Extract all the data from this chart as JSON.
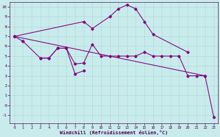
{
  "xlabel": "Windchill (Refroidissement éolien,°C)",
  "bg_color": "#c8ecec",
  "line_color": "#800080",
  "grid_color": "#b0d0d0",
  "ylim": [
    -1.8,
    10.5
  ],
  "xlim": [
    -0.5,
    23.5
  ],
  "yticks": [
    -1,
    0,
    1,
    2,
    3,
    4,
    5,
    6,
    7,
    8,
    9,
    10
  ],
  "xticks": [
    0,
    1,
    2,
    3,
    4,
    5,
    6,
    7,
    8,
    9,
    10,
    11,
    12,
    13,
    14,
    15,
    16,
    17,
    18,
    19,
    20,
    21,
    22,
    23
  ],
  "curve_short": {
    "x": [
      0,
      1
    ],
    "y": [
      7.0,
      6.5
    ]
  },
  "curve_flat": {
    "x": [
      1,
      3,
      4,
      5,
      6,
      7,
      8,
      9,
      10,
      11,
      12,
      13,
      14,
      15,
      16,
      17,
      18,
      19,
      20,
      21,
      22,
      23
    ],
    "y": [
      6.5,
      4.8,
      4.8,
      5.8,
      5.8,
      4.2,
      4.3,
      6.2,
      5.0,
      5.0,
      5.0,
      5.0,
      5.0,
      5.4,
      5.0,
      5.0,
      5.0,
      5.0,
      3.0,
      3.0,
      3.0,
      null
    ]
  },
  "curve_upper": {
    "x": [
      0,
      8,
      9,
      11,
      12,
      13,
      14,
      15,
      16,
      20
    ],
    "y": [
      7.0,
      8.5,
      7.8,
      9.0,
      9.8,
      10.2,
      9.8,
      8.5,
      7.2,
      5.4
    ]
  },
  "curve_bump": {
    "x": [
      3,
      4,
      5,
      6,
      7,
      8
    ],
    "y": [
      4.8,
      4.8,
      5.8,
      5.8,
      3.2,
      3.5
    ]
  },
  "curve_diag": {
    "x": [
      0,
      22,
      23
    ],
    "y": [
      7.0,
      3.0,
      -1.2
    ]
  },
  "tick_color": "#500050",
  "spine_color": "#500050"
}
